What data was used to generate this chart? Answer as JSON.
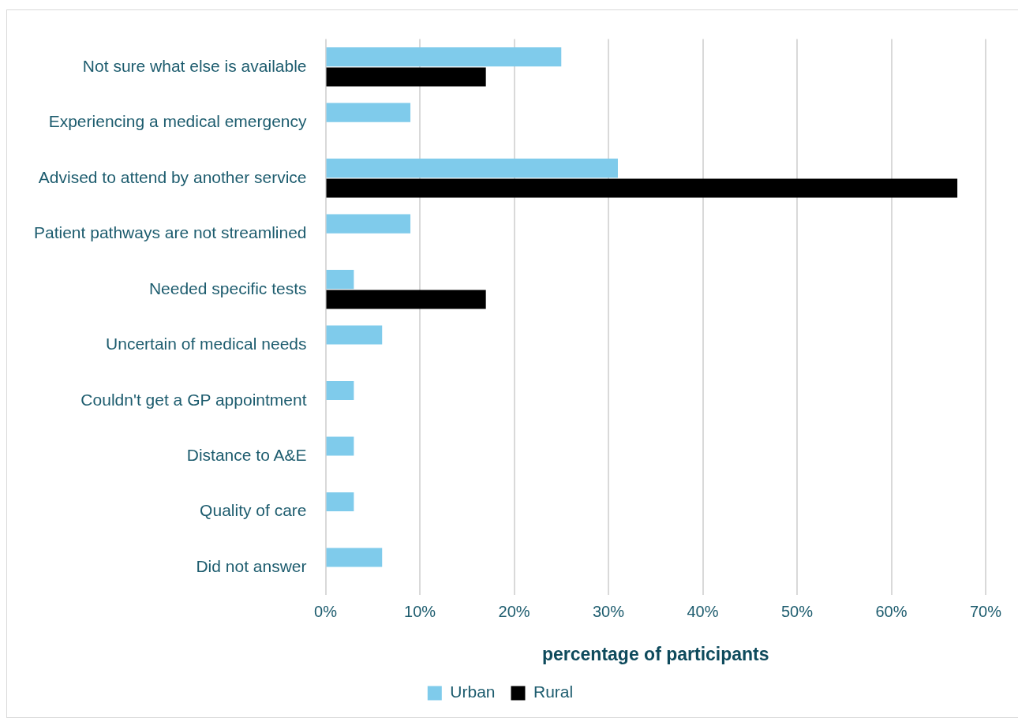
{
  "chart_data": {
    "type": "bar",
    "orientation": "horizontal",
    "xlabel": "percentage of participants",
    "categories": [
      "Not sure what else is available",
      "Experiencing a medical emergency",
      "Advised to attend by another service",
      "Patient pathways are not streamlined",
      "Needed specific tests",
      "Uncertain of medical needs",
      "Couldn't get a GP appointment",
      "Distance to A&E",
      "Quality of care",
      "Did not answer"
    ],
    "series": [
      {
        "name": "Urban",
        "color": "#7fcbeb",
        "values": [
          25,
          9,
          31,
          9,
          3,
          6,
          3,
          3,
          3,
          6
        ]
      },
      {
        "name": "Rural",
        "color": "#000000",
        "values": [
          17,
          null,
          67,
          null,
          17,
          null,
          null,
          null,
          null,
          null
        ]
      }
    ],
    "xlim": [
      0,
      70
    ],
    "xticks": [
      {
        "value": 0,
        "label": "0%"
      },
      {
        "value": 10,
        "label": "10%"
      },
      {
        "value": 20,
        "label": "20%"
      },
      {
        "value": 30,
        "label": "30%"
      },
      {
        "value": 40,
        "label": "40%"
      },
      {
        "value": 50,
        "label": "50%"
      },
      {
        "value": 60,
        "label": "60%"
      },
      {
        "value": 70,
        "label": "70%"
      }
    ],
    "grid": "x",
    "legend": "bottom"
  }
}
